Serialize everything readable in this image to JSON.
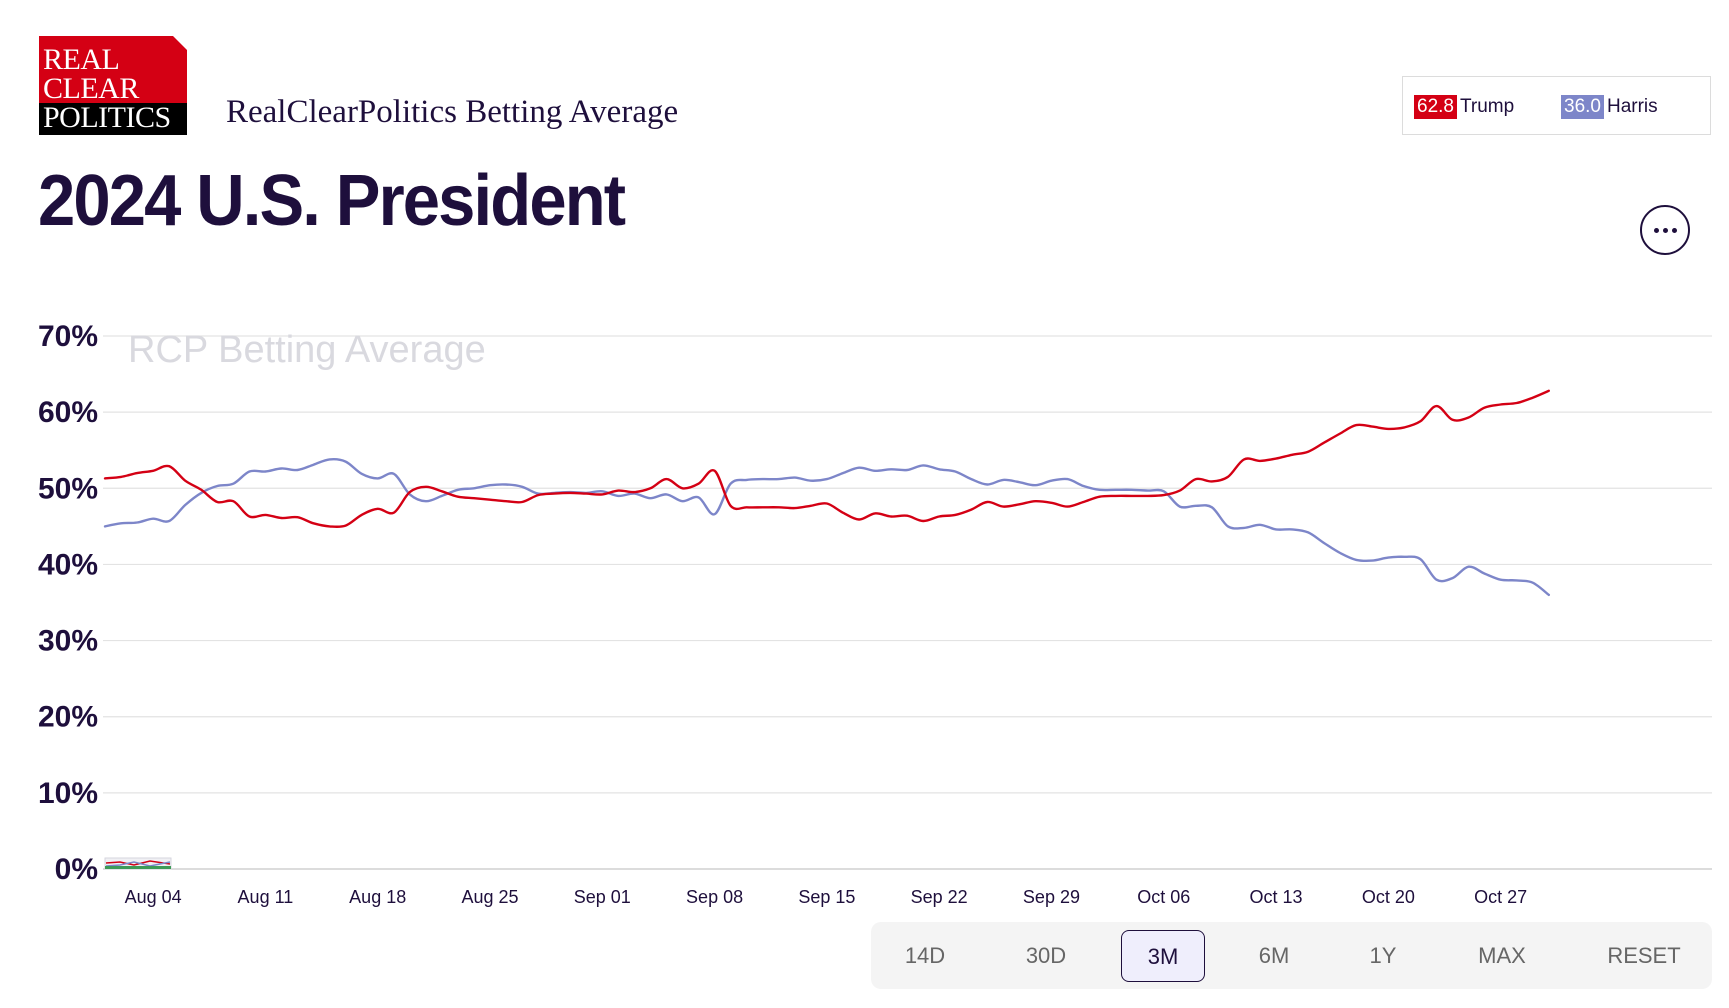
{
  "brand": {
    "logo_lines": [
      "REAL",
      "CLEAR",
      "POLITICS"
    ],
    "subtitle": "RealClearPolitics Betting Average"
  },
  "page_title": "2024 U.S. President",
  "legend": [
    {
      "value": "62.8",
      "name": "Trump",
      "color": "#d40014"
    },
    {
      "value": "36.0",
      "name": "Harris",
      "color": "#7d86c9"
    }
  ],
  "more_button_icon": "more-horizontal-icon",
  "range_buttons": [
    {
      "label": "14D",
      "active": false
    },
    {
      "label": "30D",
      "active": false
    },
    {
      "label": "3M",
      "active": true
    },
    {
      "label": "6M",
      "active": false
    },
    {
      "label": "1Y",
      "active": false
    },
    {
      "label": "MAX",
      "active": false
    },
    {
      "label": "RESET",
      "active": false
    }
  ],
  "chart_data": {
    "type": "line",
    "title": "",
    "watermark": "RCP Betting Average",
    "xlabel": "",
    "ylabel": "",
    "ylim": [
      0,
      70
    ],
    "y_ticks": [
      "0%",
      "10%",
      "20%",
      "30%",
      "40%",
      "50%",
      "60%",
      "70%"
    ],
    "x_ticks": [
      "Aug 04",
      "Aug 11",
      "Aug 18",
      "Aug 25",
      "Sep 01",
      "Sep 08",
      "Sep 15",
      "Sep 22",
      "Sep 29",
      "Oct 06",
      "Oct 13",
      "Oct 20",
      "Oct 27"
    ],
    "x_range": [
      "2024-08-01",
      "2024-11-05"
    ],
    "grid": true,
    "legend_position": "top-right",
    "series": [
      {
        "name": "Trump",
        "color": "#d40014",
        "points": [
          [
            "2024-08-01",
            51.3
          ],
          [
            "2024-08-02",
            51.5
          ],
          [
            "2024-08-03",
            52.0
          ],
          [
            "2024-08-04",
            52.3
          ],
          [
            "2024-08-05",
            52.9
          ],
          [
            "2024-08-06",
            51.0
          ],
          [
            "2024-08-07",
            49.8
          ],
          [
            "2024-08-08",
            48.2
          ],
          [
            "2024-08-09",
            48.3
          ],
          [
            "2024-08-10",
            46.3
          ],
          [
            "2024-08-11",
            46.5
          ],
          [
            "2024-08-12",
            46.1
          ],
          [
            "2024-08-13",
            46.2
          ],
          [
            "2024-08-14",
            45.4
          ],
          [
            "2024-08-15",
            45.0
          ],
          [
            "2024-08-16",
            45.1
          ],
          [
            "2024-08-17",
            46.5
          ],
          [
            "2024-08-18",
            47.3
          ],
          [
            "2024-08-19",
            46.8
          ],
          [
            "2024-08-20",
            49.5
          ],
          [
            "2024-08-21",
            50.2
          ],
          [
            "2024-08-22",
            49.6
          ],
          [
            "2024-08-23",
            48.9
          ],
          [
            "2024-08-24",
            48.7
          ],
          [
            "2024-08-25",
            48.5
          ],
          [
            "2024-08-26",
            48.3
          ],
          [
            "2024-08-27",
            48.2
          ],
          [
            "2024-08-28",
            49.1
          ],
          [
            "2024-08-29",
            49.3
          ],
          [
            "2024-08-30",
            49.4
          ],
          [
            "2024-08-31",
            49.3
          ],
          [
            "2024-09-01",
            49.2
          ],
          [
            "2024-09-02",
            49.7
          ],
          [
            "2024-09-03",
            49.5
          ],
          [
            "2024-09-04",
            50.0
          ],
          [
            "2024-09-05",
            51.2
          ],
          [
            "2024-09-06",
            50.0
          ],
          [
            "2024-09-07",
            50.6
          ],
          [
            "2024-09-08",
            52.3
          ],
          [
            "2024-09-09",
            47.7
          ],
          [
            "2024-09-10",
            47.5
          ],
          [
            "2024-09-11",
            47.5
          ],
          [
            "2024-09-12",
            47.5
          ],
          [
            "2024-09-13",
            47.4
          ],
          [
            "2024-09-14",
            47.7
          ],
          [
            "2024-09-15",
            48.0
          ],
          [
            "2024-09-16",
            46.8
          ],
          [
            "2024-09-17",
            45.9
          ],
          [
            "2024-09-18",
            46.7
          ],
          [
            "2024-09-19",
            46.3
          ],
          [
            "2024-09-20",
            46.4
          ],
          [
            "2024-09-21",
            45.7
          ],
          [
            "2024-09-22",
            46.3
          ],
          [
            "2024-09-23",
            46.5
          ],
          [
            "2024-09-24",
            47.2
          ],
          [
            "2024-09-25",
            48.2
          ],
          [
            "2024-09-26",
            47.6
          ],
          [
            "2024-09-27",
            47.9
          ],
          [
            "2024-09-28",
            48.3
          ],
          [
            "2024-09-29",
            48.1
          ],
          [
            "2024-09-30",
            47.6
          ],
          [
            "2024-10-01",
            48.2
          ],
          [
            "2024-10-02",
            48.9
          ],
          [
            "2024-10-03",
            49.0
          ],
          [
            "2024-10-04",
            49.0
          ],
          [
            "2024-10-05",
            49.0
          ],
          [
            "2024-10-06",
            49.1
          ],
          [
            "2024-10-07",
            49.7
          ],
          [
            "2024-10-08",
            51.2
          ],
          [
            "2024-10-09",
            50.9
          ],
          [
            "2024-10-10",
            51.5
          ],
          [
            "2024-10-11",
            53.8
          ],
          [
            "2024-10-12",
            53.6
          ],
          [
            "2024-10-13",
            53.9
          ],
          [
            "2024-10-14",
            54.4
          ],
          [
            "2024-10-15",
            54.8
          ],
          [
            "2024-10-16",
            56.0
          ],
          [
            "2024-10-17",
            57.2
          ],
          [
            "2024-10-18",
            58.3
          ],
          [
            "2024-10-19",
            58.1
          ],
          [
            "2024-10-20",
            57.8
          ],
          [
            "2024-10-21",
            58.0
          ],
          [
            "2024-10-22",
            58.8
          ],
          [
            "2024-10-23",
            60.8
          ],
          [
            "2024-10-24",
            59.0
          ],
          [
            "2024-10-25",
            59.3
          ],
          [
            "2024-10-26",
            60.6
          ],
          [
            "2024-10-27",
            61.0
          ],
          [
            "2024-10-28",
            61.2
          ],
          [
            "2024-10-29",
            61.9
          ],
          [
            "2024-10-30",
            62.8
          ]
        ]
      },
      {
        "name": "Harris",
        "color": "#7d86c9",
        "points": [
          [
            "2024-08-01",
            45.0
          ],
          [
            "2024-08-02",
            45.4
          ],
          [
            "2024-08-03",
            45.5
          ],
          [
            "2024-08-04",
            46.0
          ],
          [
            "2024-08-05",
            45.7
          ],
          [
            "2024-08-06",
            47.8
          ],
          [
            "2024-08-07",
            49.4
          ],
          [
            "2024-08-08",
            50.3
          ],
          [
            "2024-08-09",
            50.6
          ],
          [
            "2024-08-10",
            52.2
          ],
          [
            "2024-08-11",
            52.2
          ],
          [
            "2024-08-12",
            52.6
          ],
          [
            "2024-08-13",
            52.4
          ],
          [
            "2024-08-14",
            53.1
          ],
          [
            "2024-08-15",
            53.8
          ],
          [
            "2024-08-16",
            53.5
          ],
          [
            "2024-08-17",
            51.9
          ],
          [
            "2024-08-18",
            51.3
          ],
          [
            "2024-08-19",
            51.9
          ],
          [
            "2024-08-20",
            49.2
          ],
          [
            "2024-08-21",
            48.3
          ],
          [
            "2024-08-22",
            49.0
          ],
          [
            "2024-08-23",
            49.8
          ],
          [
            "2024-08-24",
            50.0
          ],
          [
            "2024-08-25",
            50.4
          ],
          [
            "2024-08-26",
            50.5
          ],
          [
            "2024-08-27",
            50.2
          ],
          [
            "2024-08-28",
            49.3
          ],
          [
            "2024-08-29",
            49.4
          ],
          [
            "2024-08-30",
            49.5
          ],
          [
            "2024-08-31",
            49.4
          ],
          [
            "2024-09-01",
            49.6
          ],
          [
            "2024-09-02",
            49.0
          ],
          [
            "2024-09-03",
            49.3
          ],
          [
            "2024-09-04",
            48.7
          ],
          [
            "2024-09-05",
            49.2
          ],
          [
            "2024-09-06",
            48.3
          ],
          [
            "2024-09-07",
            48.8
          ],
          [
            "2024-09-08",
            46.6
          ],
          [
            "2024-09-09",
            50.6
          ],
          [
            "2024-09-10",
            51.1
          ],
          [
            "2024-09-11",
            51.2
          ],
          [
            "2024-09-12",
            51.2
          ],
          [
            "2024-09-13",
            51.4
          ],
          [
            "2024-09-14",
            51.0
          ],
          [
            "2024-09-15",
            51.2
          ],
          [
            "2024-09-16",
            52.0
          ],
          [
            "2024-09-17",
            52.7
          ],
          [
            "2024-09-18",
            52.3
          ],
          [
            "2024-09-19",
            52.5
          ],
          [
            "2024-09-20",
            52.4
          ],
          [
            "2024-09-21",
            53.0
          ],
          [
            "2024-09-22",
            52.5
          ],
          [
            "2024-09-23",
            52.2
          ],
          [
            "2024-09-24",
            51.2
          ],
          [
            "2024-09-25",
            50.5
          ],
          [
            "2024-09-26",
            51.1
          ],
          [
            "2024-09-27",
            50.8
          ],
          [
            "2024-09-28",
            50.4
          ],
          [
            "2024-09-29",
            51.0
          ],
          [
            "2024-09-30",
            51.2
          ],
          [
            "2024-10-01",
            50.3
          ],
          [
            "2024-10-02",
            49.8
          ],
          [
            "2024-10-03",
            49.8
          ],
          [
            "2024-10-04",
            49.8
          ],
          [
            "2024-10-05",
            49.7
          ],
          [
            "2024-10-06",
            49.6
          ],
          [
            "2024-10-07",
            47.6
          ],
          [
            "2024-10-08",
            47.7
          ],
          [
            "2024-10-09",
            47.5
          ],
          [
            "2024-10-10",
            45.0
          ],
          [
            "2024-10-11",
            44.8
          ],
          [
            "2024-10-12",
            45.2
          ],
          [
            "2024-10-13",
            44.6
          ],
          [
            "2024-10-14",
            44.6
          ],
          [
            "2024-10-15",
            44.2
          ],
          [
            "2024-10-16",
            42.8
          ],
          [
            "2024-10-17",
            41.5
          ],
          [
            "2024-10-18",
            40.6
          ],
          [
            "2024-10-19",
            40.5
          ],
          [
            "2024-10-20",
            40.9
          ],
          [
            "2024-10-21",
            41.0
          ],
          [
            "2024-10-22",
            40.7
          ],
          [
            "2024-10-23",
            38.0
          ],
          [
            "2024-10-24",
            38.2
          ],
          [
            "2024-10-25",
            39.7
          ],
          [
            "2024-10-26",
            38.8
          ],
          [
            "2024-10-27",
            38.0
          ],
          [
            "2024-10-28",
            37.9
          ],
          [
            "2024-10-29",
            37.6
          ],
          [
            "2024-10-30",
            36.0
          ]
        ]
      }
    ]
  }
}
